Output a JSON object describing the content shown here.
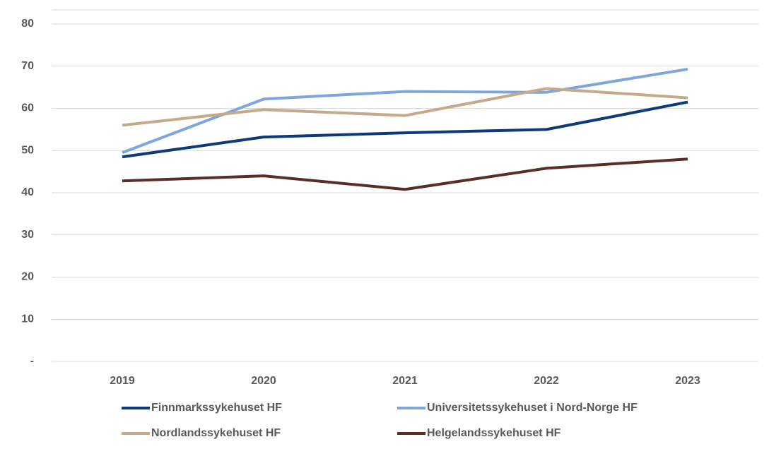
{
  "chart_data": {
    "type": "line",
    "categories": [
      "2019",
      "2020",
      "2021",
      "2022",
      "2023"
    ],
    "series": [
      {
        "name": "Finnmarkssykehuset HF",
        "color": "#0d3a7a",
        "values": [
          48.5,
          53.2,
          54.2,
          55,
          61.5
        ]
      },
      {
        "name": "Universitetssykehuset i Nord-Norge HF",
        "color": "#7ea6dc",
        "values": [
          49.5,
          62.2,
          64,
          63.8,
          69.3
        ]
      },
      {
        "name": "Nordlandssykehuset HF",
        "color": "#c4a98a",
        "values": [
          56,
          59.7,
          58.3,
          64.7,
          62.5
        ]
      },
      {
        "name": "Helgelandssykehuset HF",
        "color": "#5a2e25",
        "values": [
          42.8,
          44,
          40.8,
          45.8,
          48
        ]
      }
    ],
    "ylim": [
      0,
      80
    ],
    "yticks": [
      {
        "value": 0,
        "label": "-"
      },
      10,
      20,
      30,
      40,
      50,
      60,
      70,
      80
    ],
    "grid": true,
    "legend": "bottom"
  }
}
